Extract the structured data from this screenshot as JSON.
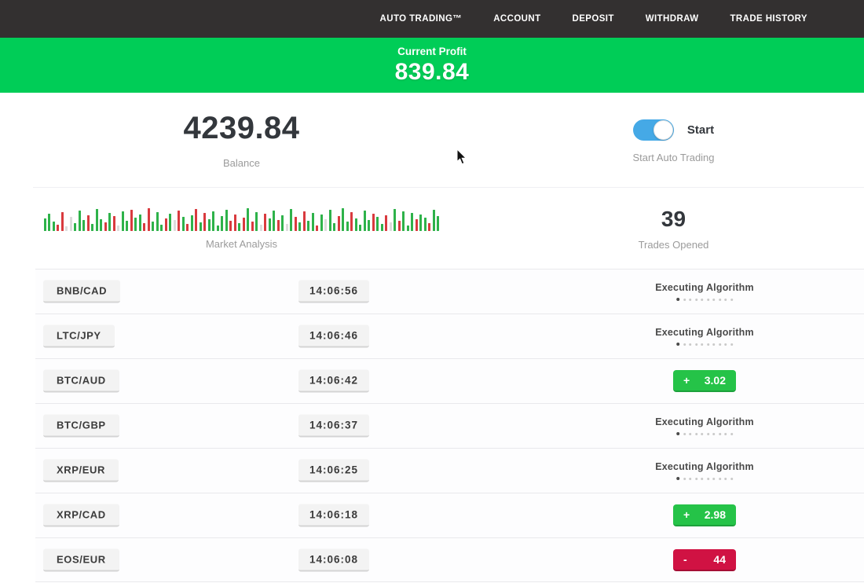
{
  "navbar": {
    "items": [
      {
        "label": "AUTO TRADING™"
      },
      {
        "label": "ACCOUNT"
      },
      {
        "label": "DEPOSIT"
      },
      {
        "label": "WITHDRAW"
      },
      {
        "label": "TRADE HISTORY"
      }
    ]
  },
  "profit_banner": {
    "label": "Current Profit",
    "value": "839.84"
  },
  "stats": {
    "balance": {
      "value": "4239.84",
      "label": "Balance"
    },
    "auto_trading": {
      "toggle_label": "Start",
      "label": "Start Auto Trading",
      "toggle_on": true
    },
    "market_analysis": {
      "label": "Market Analysis",
      "palette": [
        "#2eb24a",
        "#d93a3e",
        "#dcdcdc"
      ],
      "bars": [
        [
          16,
          0
        ],
        [
          22,
          0
        ],
        [
          12,
          0
        ],
        [
          8,
          1
        ],
        [
          24,
          1
        ],
        [
          6,
          2
        ],
        [
          18,
          2
        ],
        [
          10,
          0
        ],
        [
          26,
          0
        ],
        [
          14,
          0
        ],
        [
          20,
          1
        ],
        [
          9,
          0
        ],
        [
          28,
          0
        ],
        [
          15,
          0
        ],
        [
          11,
          1
        ],
        [
          23,
          0
        ],
        [
          19,
          1
        ],
        [
          7,
          2
        ],
        [
          25,
          0
        ],
        [
          13,
          0
        ],
        [
          27,
          1
        ],
        [
          17,
          0
        ],
        [
          21,
          0
        ],
        [
          10,
          1
        ],
        [
          29,
          1
        ],
        [
          12,
          0
        ],
        [
          24,
          0
        ],
        [
          8,
          0
        ],
        [
          16,
          1
        ],
        [
          22,
          0
        ],
        [
          14,
          2
        ],
        [
          26,
          1
        ],
        [
          18,
          0
        ],
        [
          9,
          1
        ],
        [
          20,
          0
        ],
        [
          28,
          1
        ],
        [
          11,
          0
        ],
        [
          23,
          1
        ],
        [
          15,
          0
        ],
        [
          25,
          0
        ],
        [
          7,
          0
        ],
        [
          19,
          0
        ],
        [
          27,
          0
        ],
        [
          13,
          1
        ],
        [
          21,
          1
        ],
        [
          10,
          0
        ],
        [
          17,
          1
        ],
        [
          29,
          0
        ],
        [
          12,
          1
        ],
        [
          24,
          0
        ],
        [
          8,
          2
        ],
        [
          22,
          1
        ],
        [
          16,
          0
        ],
        [
          26,
          0
        ],
        [
          14,
          1
        ],
        [
          20,
          0
        ],
        [
          9,
          2
        ],
        [
          28,
          0
        ],
        [
          18,
          1
        ],
        [
          11,
          0
        ],
        [
          25,
          1
        ],
        [
          13,
          0
        ],
        [
          23,
          0
        ],
        [
          7,
          1
        ],
        [
          21,
          0
        ],
        [
          15,
          2
        ],
        [
          27,
          0
        ],
        [
          10,
          0
        ],
        [
          19,
          1
        ],
        [
          29,
          0
        ],
        [
          12,
          0
        ],
        [
          24,
          1
        ],
        [
          16,
          0
        ],
        [
          8,
          0
        ],
        [
          26,
          0
        ],
        [
          14,
          0
        ],
        [
          22,
          1
        ],
        [
          18,
          0
        ],
        [
          9,
          0
        ],
        [
          20,
          1
        ],
        [
          11,
          2
        ],
        [
          28,
          0
        ],
        [
          13,
          1
        ],
        [
          25,
          0
        ],
        [
          7,
          0
        ],
        [
          23,
          0
        ],
        [
          15,
          1
        ],
        [
          21,
          0
        ],
        [
          17,
          0
        ],
        [
          10,
          1
        ],
        [
          27,
          0
        ],
        [
          19,
          0
        ]
      ]
    },
    "trades_opened": {
      "value": "39",
      "label": "Trades Opened"
    }
  },
  "trade_rows": {
    "executing_label": "Executing Algorithm",
    "dots_total": 10
  },
  "trades": [
    {
      "pair": "BNB/CAD",
      "time": "14:06:56",
      "status": "executing"
    },
    {
      "pair": "LTC/JPY",
      "time": "14:06:46",
      "status": "executing"
    },
    {
      "pair": "BTC/AUD",
      "time": "14:06:42",
      "status": "result",
      "result_type": "profit",
      "sign": "+",
      "value": "3.02"
    },
    {
      "pair": "BTC/GBP",
      "time": "14:06:37",
      "status": "executing"
    },
    {
      "pair": "XRP/EUR",
      "time": "14:06:25",
      "status": "executing"
    },
    {
      "pair": "XRP/CAD",
      "time": "14:06:18",
      "status": "result",
      "result_type": "profit",
      "sign": "+",
      "value": "2.98"
    },
    {
      "pair": "EOS/EUR",
      "time": "14:06:08",
      "status": "result",
      "result_type": "loss",
      "sign": "-",
      "value": "44"
    }
  ],
  "colors": {
    "navbar_bg": "#333030",
    "banner_green": "#00cd57",
    "profit_green": "#25c348",
    "loss_red": "#d01243",
    "toggle_blue": "#45a9e6"
  }
}
